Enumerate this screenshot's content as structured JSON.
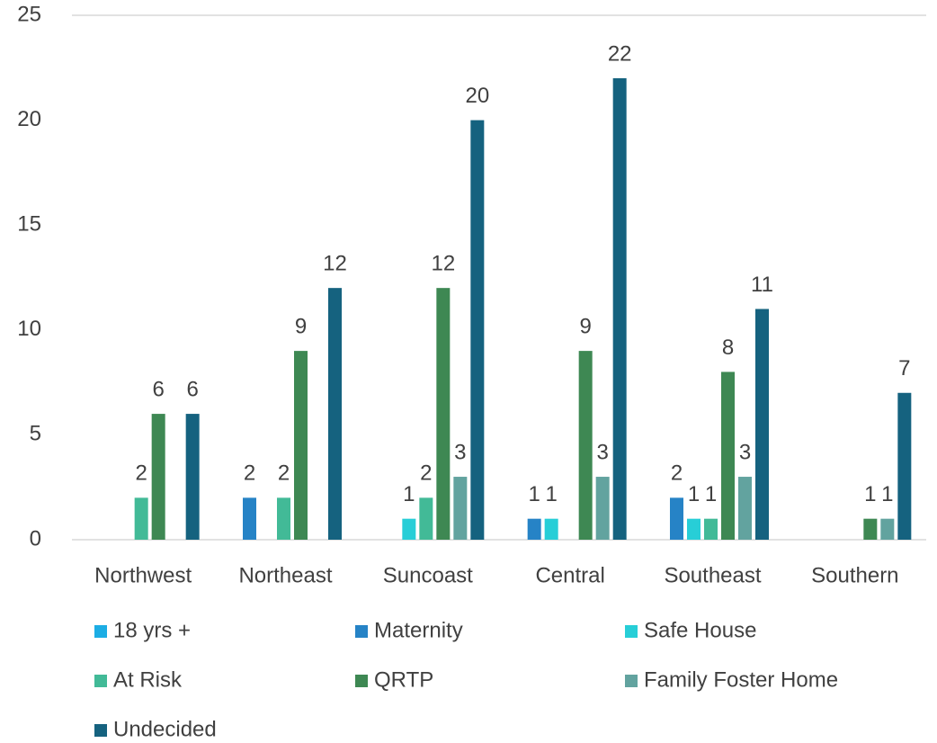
{
  "chart_data": {
    "type": "bar",
    "categories": [
      "Northwest",
      "Northeast",
      "Suncoast",
      "Central",
      "Southeast",
      "Southern"
    ],
    "series": [
      {
        "name": "18 yrs +",
        "color": "#1cade4",
        "values": [
          0,
          0,
          0,
          0,
          0,
          0
        ]
      },
      {
        "name": "Maternity",
        "color": "#2683c6",
        "values": [
          0,
          2,
          0,
          1,
          2,
          0
        ]
      },
      {
        "name": "Safe House",
        "color": "#27ced7",
        "values": [
          0,
          0,
          1,
          1,
          1,
          0
        ]
      },
      {
        "name": "At Risk",
        "color": "#42ba97",
        "values": [
          2,
          2,
          2,
          0,
          1,
          0
        ]
      },
      {
        "name": "QRTP",
        "color": "#3e8853",
        "values": [
          6,
          9,
          12,
          9,
          8,
          1
        ]
      },
      {
        "name": "Family Foster Home",
        "color": "#62a39f",
        "values": [
          0,
          0,
          3,
          3,
          3,
          1
        ]
      },
      {
        "name": "Undecided",
        "color": "#15627f",
        "values": [
          6,
          12,
          20,
          22,
          11,
          7
        ]
      }
    ],
    "ylim": [
      0,
      25
    ],
    "yticks": [
      0,
      5,
      10,
      15,
      20,
      25
    ],
    "grid": false,
    "legend": "bottom"
  }
}
